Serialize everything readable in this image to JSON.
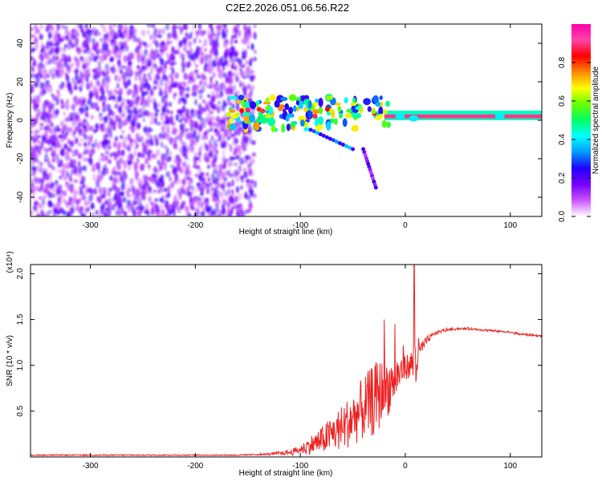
{
  "title": "C2E2.2026.051.06.56.R22",
  "chart_data": [
    {
      "type": "heatmap",
      "name": "spectrogram",
      "xlabel": "Height of straight line (km)",
      "ylabel": "Frequency (Hz)",
      "xlim": [
        -357,
        130
      ],
      "ylim": [
        -50,
        50
      ],
      "x_ticks": [
        -300,
        -200,
        -100,
        0,
        100
      ],
      "y_ticks": [
        -40,
        -20,
        0,
        20,
        40
      ],
      "colorbar": {
        "label": "Normalized spectral amplitude",
        "range": [
          0,
          1
        ],
        "ticks": [
          "0.0",
          "0.2",
          "0.4",
          "0.6",
          "0.8"
        ],
        "colors": [
          "#ffffff",
          "#cc55ff",
          "#7700ff",
          "#2200ff",
          "#0099ff",
          "#00ffff",
          "#00ff66",
          "#66ff00",
          "#ffff00",
          "#ff8800",
          "#ff0000",
          "#ff44aa",
          "#ff00aa"
        ]
      },
      "regions": [
        {
          "desc": "noise",
          "x": [
            -357,
            -143
          ],
          "freq": [
            -50,
            50
          ],
          "amplitude": [
            0.05,
            0.25
          ]
        },
        {
          "desc": "signal band",
          "x": [
            -170,
            130
          ],
          "freq": [
            0,
            5
          ],
          "amplitude": [
            0.2,
            1.0
          ]
        },
        {
          "desc": "streak",
          "x": [
            -90,
            -50
          ],
          "freq": [
            -15,
            -5
          ],
          "amplitude": [
            0.2,
            0.4
          ]
        },
        {
          "desc": "streak",
          "x": [
            -40,
            -28
          ],
          "freq": [
            -35,
            -15
          ],
          "amplitude": [
            0.1,
            0.25
          ]
        }
      ],
      "grid": false
    },
    {
      "type": "line",
      "name": "snr",
      "xlabel": "Height of straight line (km)",
      "ylabel": "SNR (10 * v/v)",
      "scale_label": "(x10⁴)",
      "xlim": [
        -357,
        130
      ],
      "ylim": [
        0,
        2.1
      ],
      "x_ticks": [
        -300,
        -200,
        -100,
        0,
        100
      ],
      "y_ticks": [
        "0.5",
        "1.0",
        "1.5",
        "2.0"
      ],
      "color": "#ee2222",
      "x": [
        -357,
        -300,
        -250,
        -200,
        -160,
        -130,
        -110,
        -100,
        -90,
        -80,
        -70,
        -60,
        -50,
        -40,
        -30,
        -25,
        -20,
        -15,
        -10,
        -5,
        0,
        5,
        8,
        10,
        12,
        15,
        20,
        25,
        30,
        40,
        50,
        60,
        70,
        80,
        90,
        100,
        110,
        120,
        130
      ],
      "y": [
        0.02,
        0.02,
        0.02,
        0.02,
        0.02,
        0.03,
        0.05,
        0.08,
        0.13,
        0.18,
        0.25,
        0.32,
        0.42,
        0.52,
        0.62,
        0.68,
        0.72,
        0.78,
        0.85,
        0.92,
        0.98,
        1.0,
        1.05,
        1.08,
        1.12,
        1.18,
        1.26,
        1.32,
        1.36,
        1.39,
        1.4,
        1.4,
        1.39,
        1.38,
        1.37,
        1.36,
        1.34,
        1.33,
        1.32
      ],
      "spread": [
        0,
        0,
        0,
        0,
        0,
        0.01,
        0.03,
        0.05,
        0.1,
        0.15,
        0.2,
        0.25,
        0.3,
        0.35,
        0.4,
        0.4,
        0.35,
        0.3,
        0.25,
        0.2,
        0.15,
        0.12,
        0.3,
        0.45,
        0.2,
        0.08,
        0.05,
        0.03,
        0.02,
        0.015,
        0.01,
        0.01,
        0.01,
        0.01,
        0.01,
        0.01,
        0.01,
        0.01,
        0.01
      ],
      "spikes": [
        {
          "x": 8.5,
          "y": 2.1
        },
        {
          "x": -10,
          "y": 1.45
        },
        {
          "x": -20,
          "y": 1.5
        },
        {
          "x": -2,
          "y": 1.22
        }
      ],
      "grid": false
    }
  ]
}
